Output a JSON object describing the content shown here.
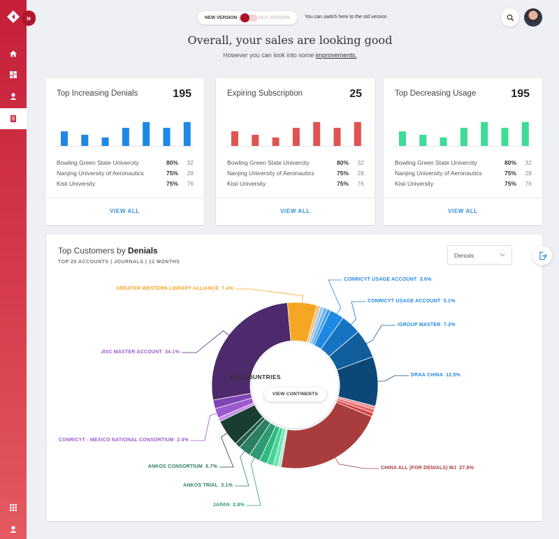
{
  "colors": {
    "brand": "#c51f3a",
    "blue": "#1e88e5",
    "red": "#e05353",
    "green": "#3ddc97",
    "link": "#2f8fd6"
  },
  "sidebar": {
    "icons": [
      "logo-icon",
      "chevrons-right-icon",
      "home-icon",
      "dashboard-icon",
      "user-icon",
      "document-icon",
      "apps-grid-icon",
      "account-icon"
    ],
    "active": "document-icon"
  },
  "header": {
    "new_version": "NEW VERSION",
    "old_version": "OLD VERSION",
    "switch_hint": "You can switch here to the old version",
    "headline": "Overall, your sales are looking good",
    "subline": "However you can look into some",
    "subline_link": "improvements."
  },
  "cards": [
    {
      "title": "Top Increasing Denials",
      "value": "195",
      "bar_color": "#1e88e5",
      "bars": [
        0.55,
        0.42,
        0.32,
        0.68,
        0.9,
        0.68,
        0.9
      ],
      "rows": [
        {
          "name": "Bowling Green State Univercity",
          "pct": "80%",
          "count": "32"
        },
        {
          "name": "Nanjing University of Aeronautics",
          "pct": "75%",
          "count": "28"
        },
        {
          "name": "Kisii University",
          "pct": "75%",
          "count": "76"
        }
      ],
      "view_all": "VIEW ALL"
    },
    {
      "title": "Expiring Subscription",
      "value": "25",
      "bar_color": "#e05353",
      "bars": [
        0.55,
        0.42,
        0.32,
        0.68,
        0.9,
        0.68,
        0.9
      ],
      "rows": [
        {
          "name": "Bowling Green State Univercity",
          "pct": "80%",
          "count": "32"
        },
        {
          "name": "Nanjing University of Aeronautics",
          "pct": "75%",
          "count": "28"
        },
        {
          "name": "Kisii University",
          "pct": "75%",
          "count": "76"
        }
      ],
      "view_all": "VIEW ALL"
    },
    {
      "title": "Top Decreasing Usage",
      "value": "195",
      "bar_color": "#3ddc97",
      "bars": [
        0.55,
        0.42,
        0.32,
        0.68,
        0.9,
        0.68,
        0.9
      ],
      "rows": [
        {
          "name": "Bowling Green State Univercity",
          "pct": "80%",
          "count": "32"
        },
        {
          "name": "Nanjing University of Aeronautics",
          "pct": "75%",
          "count": "28"
        },
        {
          "name": "Kisii University",
          "pct": "75%",
          "count": "76"
        }
      ],
      "view_all": "VIEW ALL"
    }
  ],
  "panel": {
    "title_prefix": "Top Customers by ",
    "title_bold": "Denials",
    "subtitle": "TOP 20 ACCOUNTS | JOURNALS | 12 MONTHS",
    "select_value": "Denials",
    "center_title": "ALL COUNTRIES",
    "center_button": "VIEW CONTINENTS"
  },
  "chart_data": {
    "type": "pie",
    "donut": true,
    "slices": [
      {
        "label": "CONRICYT USAGE ACCOUNT",
        "value": 3.6,
        "display": "3.6%",
        "color": "#1e88e5",
        "labeled": true
      },
      {
        "label": "CONRICYT USAGE ACCOUNT",
        "value": 5.1,
        "display": "5.1%",
        "color": "#1673c1",
        "labeled": true
      },
      {
        "label": "IGROUP MASTER",
        "value": 7.2,
        "display": "7.2%",
        "color": "#105f9c",
        "labeled": true
      },
      {
        "label": "DRAA CHINA",
        "value": 12.5,
        "display": "12.5%",
        "color": "#0b4878",
        "labeled": true
      },
      {
        "label": "",
        "value": 0.8,
        "color": "#f08c8c",
        "labeled": false
      },
      {
        "label": "",
        "value": 0.9,
        "color": "#ea6464",
        "labeled": false
      },
      {
        "label": "",
        "value": 1.0,
        "color": "#d64545",
        "labeled": false
      },
      {
        "label": "CHINA ALL (FOR DENIALS) MJ",
        "value": 27.8,
        "display": "27.8%",
        "color": "#a93d3d",
        "labeled": true
      },
      {
        "label": "",
        "value": 0.8,
        "color": "#a8f0cf",
        "labeled": false
      },
      {
        "label": "",
        "value": 1.2,
        "color": "#6fe5b2",
        "labeled": false
      },
      {
        "label": "",
        "value": 1.6,
        "color": "#46d499",
        "labeled": false
      },
      {
        "label": "",
        "value": 2.0,
        "color": "#2fb983",
        "labeled": false
      },
      {
        "label": "JAPAN",
        "value": 2.8,
        "display": "2.8%",
        "color": "#2e9a71",
        "labeled": true
      },
      {
        "label": "ANKOS TRIAL",
        "value": 3.1,
        "display": "3.1%",
        "color": "#2b7f60",
        "labeled": true
      },
      {
        "label": "",
        "value": 1.4,
        "color": "#225e47",
        "labeled": false
      },
      {
        "label": "ANKOS CONSORTIUM",
        "value": 6.7,
        "display": "6.7%",
        "color": "#1a3d31",
        "labeled": true
      },
      {
        "label": "",
        "value": 1.0,
        "color": "#c28ae8",
        "labeled": false
      },
      {
        "label": "CONRICYT - MEXICO NATIONAL CONSORTIUM",
        "value": 2.4,
        "display": "2.4%",
        "color": "#9d59cf",
        "labeled": true
      },
      {
        "label": "",
        "value": 2.2,
        "color": "#7d44b3",
        "labeled": false
      },
      {
        "label": "JISC MASTER ACCOUNT",
        "value": 34.1,
        "display": "34.1%",
        "color": "#4d2a6b",
        "labeled": true
      },
      {
        "label": "GREATER WESTERN LIBRARY ALLIANCE",
        "value": 7.4,
        "display": "7.4%",
        "color": "#f5a623",
        "labeled": true
      },
      {
        "label": "",
        "value": 0.9,
        "color": "#f7c07a",
        "labeled": false
      },
      {
        "label": "",
        "value": 0.9,
        "color": "#9fc9ef",
        "labeled": false
      },
      {
        "label": "",
        "value": 0.9,
        "color": "#6bb1ec",
        "labeled": false
      },
      {
        "label": "",
        "value": 0.9,
        "color": "#3f9ce8",
        "labeled": false
      }
    ]
  }
}
